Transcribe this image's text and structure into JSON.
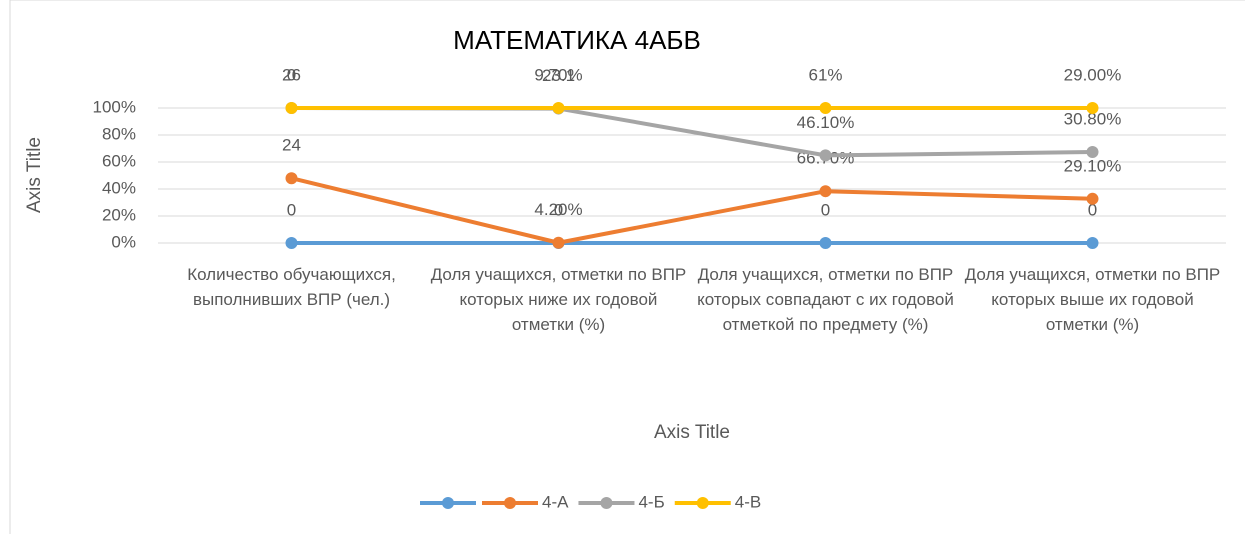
{
  "chart_data": {
    "type": "line",
    "stacking": "percent",
    "title": "МАТЕМАТИКА   4АБВ",
    "x_label": "Axis Title",
    "y_label": "Axis Title",
    "categories": [
      "Количество обучающихся, выполнивших  ВПР (чел.)",
      "Доля учащихся, отметки по ВПР которых  ниже их годовой отметки (%)",
      "Доля учащихся, отметки по ВПР которых совпадают с их годовой отметкой по предмету (%)",
      "Доля учащихся, отметки по ВПР которых выше их годовой отметки (%)"
    ],
    "series": [
      {
        "color": "#5b9bd5",
        "values": [
          0,
          0,
          0,
          0
        ]
      },
      {
        "name": "4-А",
        "color": "#ed7d31",
        "values": [
          24,
          0.042,
          0.667,
          0.291
        ],
        "value_labels": [
          "24",
          "4.20%",
          "66.70%",
          "29.10%"
        ]
      },
      {
        "name": "4-Б",
        "color": "#a5a5a5",
        "values": [
          26,
          23.1,
          0.461,
          0.308
        ],
        "value_labels": [
          "26",
          "23.1",
          "46.10%",
          "30.80%"
        ]
      },
      {
        "name": "4-В",
        "color": "#ffc000",
        "values": [
          0,
          0.097,
          0.61,
          0.29
        ],
        "value_labels": [
          "0",
          "9.70%",
          "61%",
          "29.00%"
        ]
      }
    ],
    "ylim": [
      0,
      1
    ],
    "yticks": [
      {
        "value": 0,
        "label": "0%"
      },
      {
        "value": 0.2,
        "label": "20%"
      },
      {
        "value": 0.4,
        "label": "40%"
      },
      {
        "value": 0.6,
        "label": "60%"
      },
      {
        "value": 0.8,
        "label": "80%"
      },
      {
        "value": 1,
        "label": "100%"
      }
    ],
    "grid": true,
    "legend": "bottom"
  }
}
